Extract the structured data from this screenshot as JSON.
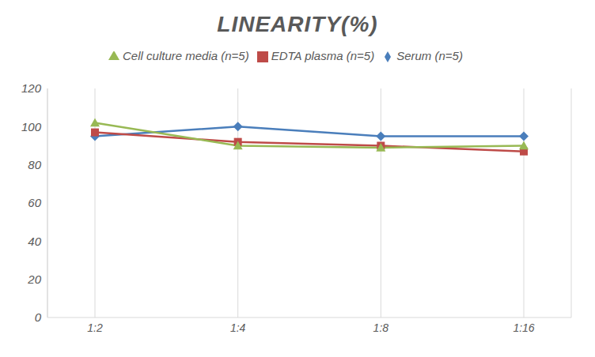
{
  "chart_data": {
    "type": "line",
    "title": "LINEARITY(%)",
    "categories": [
      "1:2",
      "1:4",
      "1:8",
      "1:16"
    ],
    "series": [
      {
        "name": "Serum (n=5)",
        "color": "#4a7ebb",
        "marker": "diamond",
        "values": [
          95,
          100,
          95,
          95
        ]
      },
      {
        "name": "EDTA plasma (n=5)",
        "color": "#be4b48",
        "marker": "square",
        "values": [
          97,
          92,
          90,
          87
        ]
      },
      {
        "name": "Cell culture media (n=5)",
        "color": "#98b954",
        "marker": "triangle",
        "values": [
          102,
          90,
          89,
          90
        ]
      }
    ],
    "ylim": [
      0,
      120
    ],
    "yticks": [
      0,
      20,
      40,
      60,
      80,
      100,
      120
    ],
    "grid": true,
    "legend": "top"
  }
}
